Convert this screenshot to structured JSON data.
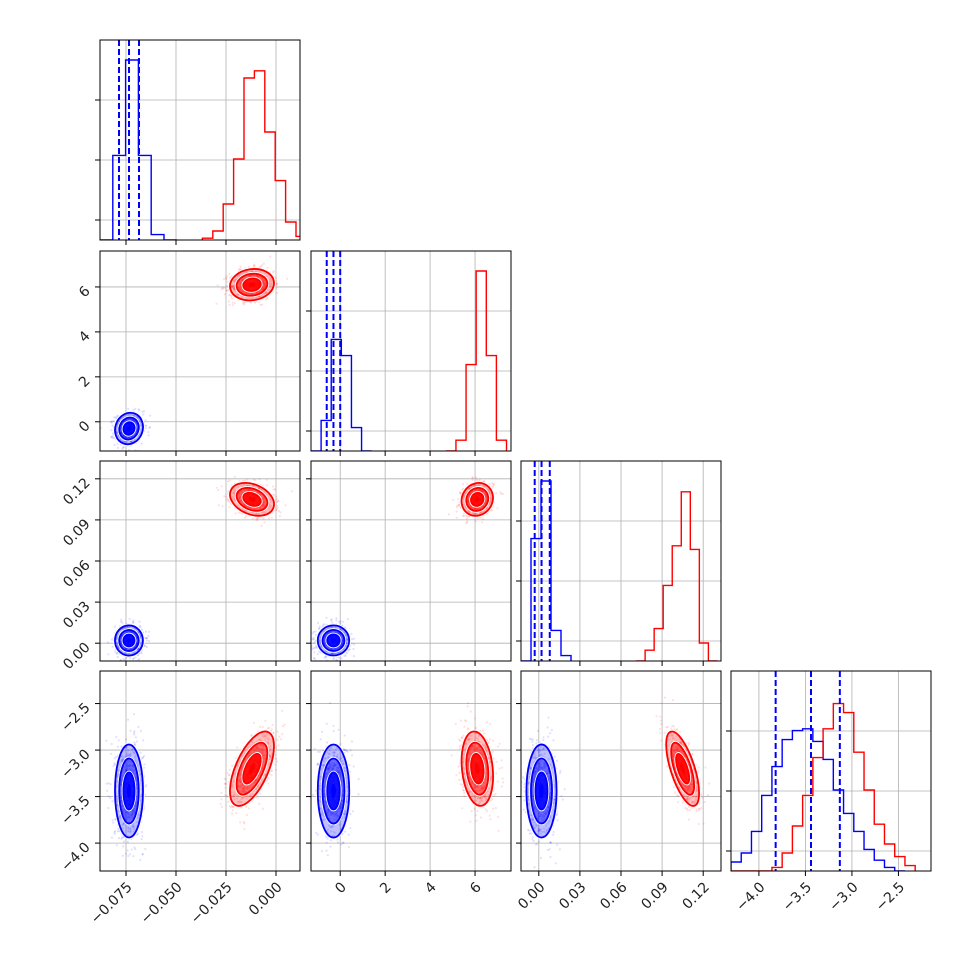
{
  "figure": {
    "type": "corner-plot",
    "colors": {
      "blue": "#0000ff",
      "red": "#ff0000",
      "grid": "#b0b0b0",
      "frame": "#000000"
    },
    "params": [
      {
        "range": [
          -0.088,
          0.012
        ],
        "ticks": [
          "-0.075",
          "-0.050",
          "-0.025",
          "0.000"
        ],
        "tick_values": [
          -0.075,
          -0.05,
          -0.025,
          0.0
        ]
      },
      {
        "range": [
          -1.3,
          7.6
        ],
        "ticks": [
          "0",
          "2",
          "4",
          "6"
        ],
        "tick_values": [
          0,
          2,
          4,
          6
        ]
      },
      {
        "range": [
          -0.013,
          0.133
        ],
        "ticks": [
          "0.00",
          "0.03",
          "0.06",
          "0.09",
          "0.12"
        ],
        "tick_values": [
          0.0,
          0.03,
          0.06,
          0.09,
          0.12
        ]
      },
      {
        "range": [
          -4.3,
          -2.15
        ],
        "ticks": [
          "-4.0",
          "-3.5",
          "-3.0",
          "-2.5"
        ],
        "tick_values": [
          -4.0,
          -3.5,
          -3.0,
          -2.5
        ]
      }
    ],
    "quantile_lines_blue": [
      [
        -0.0785,
        -0.0735,
        -0.0685
      ],
      [
        -0.6,
        -0.3,
        0.0
      ],
      [
        -0.003,
        0.002,
        0.008
      ],
      [
        -3.82,
        -3.44,
        -3.13
      ]
    ]
  },
  "chart_data": {
    "type": "scatter",
    "series": [
      {
        "color": "#0000ff",
        "means": [
          -0.0735,
          -0.3,
          0.002,
          -3.44
        ],
        "stds": [
          0.0035,
          0.35,
          0.0055,
          0.25
        ],
        "correlations": {
          "0-1": 0.1,
          "0-2": 0.0,
          "0-3": 0.0,
          "1-2": 0.0,
          "1-3": 0.0,
          "2-3": 0.0
        },
        "histograms": [
          {
            "edges": [
              -0.088,
              -0.0816,
              -0.0752,
              -0.0688,
              -0.0624,
              -0.056,
              -0.0496
            ],
            "heights": [
              0.0,
              0.47,
              1.0,
              0.47,
              0.03,
              0.0
            ]
          },
          {
            "edges": [
              -1.3,
              -0.85,
              -0.4,
              0.05,
              0.5,
              0.95,
              1.4
            ],
            "heights": [
              0.0,
              0.17,
              0.62,
              0.53,
              0.13,
              0.0
            ]
          },
          {
            "edges": [
              -0.013,
              -0.0057,
              0.0016,
              0.0089,
              0.0162,
              0.0235
            ],
            "heights": [
              0.0,
              0.68,
              1.0,
              0.17,
              0.03
            ]
          },
          {
            "edges": [
              -4.3,
              -4.19,
              -4.08,
              -3.97,
              -3.86,
              -3.75,
              -3.64,
              -3.53,
              -3.42,
              -3.31,
              -3.2,
              -3.09,
              -2.98,
              -2.87,
              -2.76,
              -2.65,
              -2.54,
              -2.43
            ],
            "heights": [
              0.05,
              0.1,
              0.22,
              0.42,
              0.58,
              0.73,
              0.78,
              0.79,
              0.72,
              0.62,
              0.45,
              0.32,
              0.22,
              0.12,
              0.06,
              0.02,
              0.0
            ]
          }
        ]
      },
      {
        "color": "#ff0000",
        "means": [
          -0.012,
          6.1,
          0.105,
          -3.2
        ],
        "stds": [
          0.0055,
          0.35,
          0.006,
          0.2
        ],
        "correlations": {
          "0-1": 0.1,
          "0-2": -0.3,
          "0-3": 0.6,
          "1-2": 0.1,
          "1-3": -0.2,
          "2-3": -0.65
        },
        "histograms": [
          {
            "edges": [
              -0.0368,
              -0.0316,
              -0.0264,
              -0.0212,
              -0.016,
              -0.0108,
              -0.0056,
              -0.0004,
              0.0048,
              0.01,
              0.0152
            ],
            "heights": [
              0.01,
              0.05,
              0.2,
              0.45,
              0.9,
              0.94,
              0.6,
              0.33,
              0.1,
              0.02
            ]
          },
          {
            "edges": [
              4.7,
              5.15,
              5.6,
              6.05,
              6.5,
              6.95,
              7.4
            ],
            "heights": [
              0.0,
              0.06,
              0.48,
              1.0,
              0.53,
              0.06
            ]
          },
          {
            "edges": [
              0.071,
              0.0776,
              0.0842,
              0.0908,
              0.0974,
              0.104,
              0.1106,
              0.1172,
              0.1238,
              0.1304
            ],
            "heights": [
              0.0,
              0.06,
              0.18,
              0.42,
              0.64,
              0.94,
              0.62,
              0.1,
              0.0
            ]
          },
          {
            "edges": [
              -4.3,
              -4.19,
              -4.08,
              -3.97,
              -3.86,
              -3.75,
              -3.64,
              -3.53,
              -3.42,
              -3.31,
              -3.2,
              -3.09,
              -2.98,
              -2.87,
              -2.76,
              -2.65,
              -2.54,
              -2.43,
              -2.32
            ],
            "heights": [
              0.0,
              0.0,
              0.0,
              0.0,
              0.02,
              0.1,
              0.25,
              0.42,
              0.63,
              0.79,
              0.93,
              0.88,
              0.66,
              0.45,
              0.26,
              0.15,
              0.08,
              0.03
            ]
          }
        ]
      }
    ]
  }
}
